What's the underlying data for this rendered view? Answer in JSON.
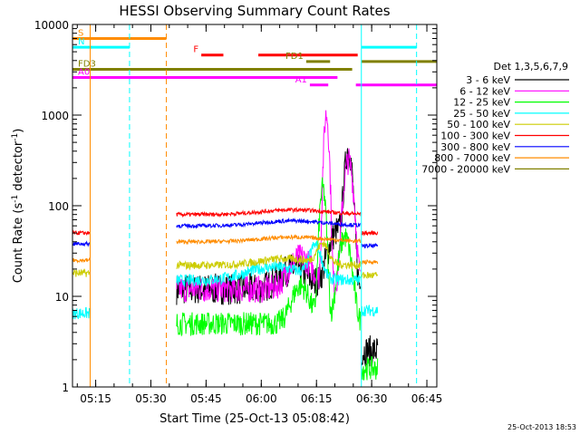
{
  "chart_data": {
    "type": "line",
    "title": "HESSI Observing Summary Count Rates",
    "xlabel": "Start Time (25-Oct-13 05:08:42)",
    "ylabel_main": "Count Rate (s",
    "ylabel_sup": "-1",
    "ylabel_tail": " detector",
    "ylabel_end": ")",
    "timestamp": "25-Oct-2013 18:53",
    "x_range_minutes": [
      0,
      99
    ],
    "y_range": [
      1,
      10000
    ],
    "y_scale": "log",
    "x_ticks": [
      {
        "label": "05:15",
        "t": 6.3
      },
      {
        "label": "05:30",
        "t": 21.3
      },
      {
        "label": "05:45",
        "t": 36.3
      },
      {
        "label": "06:00",
        "t": 51.3
      },
      {
        "label": "06:15",
        "t": 66.3
      },
      {
        "label": "06:30",
        "t": 81.3
      },
      {
        "label": "06:45",
        "t": 96.3
      }
    ],
    "y_ticks": [
      {
        "label": "1",
        "v": 1
      },
      {
        "label": "10",
        "v": 10
      },
      {
        "label": "100",
        "v": 100
      },
      {
        "label": "1000",
        "v": 1000
      },
      {
        "label": "10000",
        "v": 10000
      }
    ],
    "legend_title": "Det 1,3,5,6,7,9",
    "series": [
      {
        "name": "3 - 6 keV",
        "color": "#000000"
      },
      {
        "name": "6 - 12 keV",
        "color": "#ff00ff"
      },
      {
        "name": "12 - 25 keV",
        "color": "#00ff00"
      },
      {
        "name": "25 - 50 keV",
        "color": "#00ffff"
      },
      {
        "name": "50 - 100 keV",
        "color": "#cccc00"
      },
      {
        "name": "100 - 300 keV",
        "color": "#ff0000"
      },
      {
        "name": "300 - 800 keV",
        "color": "#0000ff"
      },
      {
        "name": "800 - 7000 keV",
        "color": "#ff8c00"
      },
      {
        "name": "7000 - 20000 keV",
        "color": "#808000"
      }
    ],
    "flag_bars": [
      {
        "label": "S",
        "color": "#ff8c00",
        "y": 7000,
        "segments": [
          [
            0,
            25.5
          ]
        ]
      },
      {
        "label": "N",
        "color": "#00ffff",
        "y": 5600,
        "segments": [
          [
            0,
            15.5
          ],
          [
            78.5,
            93.5
          ]
        ]
      },
      {
        "label": "F",
        "color": "#ff0000",
        "y": 4600,
        "segments": [
          [
            35,
            41
          ],
          [
            50.5,
            77.5
          ]
        ]
      },
      {
        "label": "FD1",
        "color": "#808000",
        "y": 3900,
        "segments": [
          [
            63.5,
            70
          ],
          [
            78.5,
            99
          ]
        ]
      },
      {
        "label": "FD3",
        "color": "#808000",
        "y": 3200,
        "segments": [
          [
            0,
            76
          ]
        ]
      },
      {
        "label": "A0",
        "color": "#ff00ff",
        "y": 2600,
        "segments": [
          [
            0,
            72
          ]
        ]
      },
      {
        "label": "A1",
        "color": "#ff00ff",
        "y": 2150,
        "segments": [
          [
            64.5,
            69.5
          ],
          [
            77,
            99
          ]
        ]
      }
    ],
    "vertical_lines": [
      {
        "t": 4.8,
        "color": "#ff8c00",
        "style": "solid"
      },
      {
        "t": 15.5,
        "color": "#00ffff",
        "style": "dashed"
      },
      {
        "t": 25.5,
        "color": "#ff8c00",
        "style": "dashed"
      },
      {
        "t": 78.5,
        "color": "#00ffff",
        "style": "solid"
      },
      {
        "t": 93.5,
        "color": "#00ffff",
        "style": "dashed"
      }
    ]
  }
}
